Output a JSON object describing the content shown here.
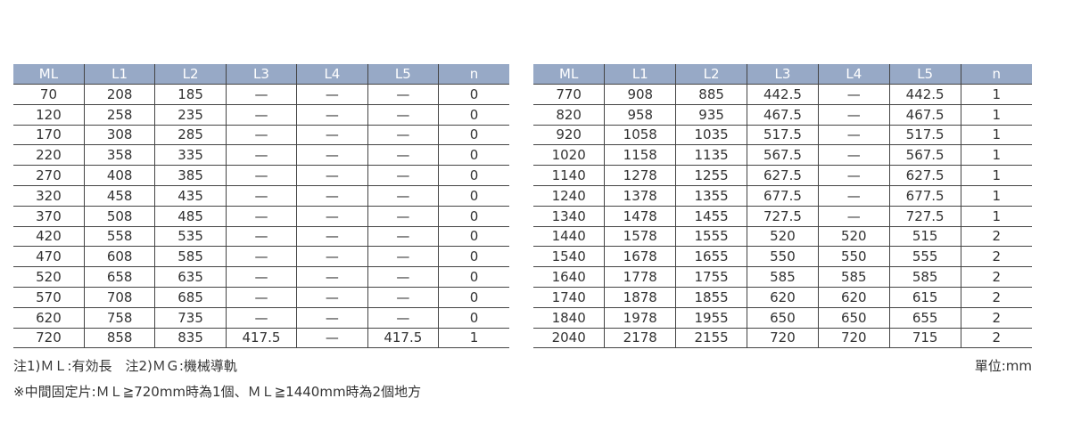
{
  "headers": [
    "ML",
    "L1",
    "L2",
    "L3",
    "L4",
    "L5",
    "n"
  ],
  "left_rows": [
    [
      "70",
      "208",
      "185",
      "—",
      "—",
      "—",
      "0"
    ],
    [
      "120",
      "258",
      "235",
      "—",
      "—",
      "—",
      "0"
    ],
    [
      "170",
      "308",
      "285",
      "—",
      "—",
      "—",
      "0"
    ],
    [
      "220",
      "358",
      "335",
      "—",
      "—",
      "—",
      "0"
    ],
    [
      "270",
      "408",
      "385",
      "—",
      "—",
      "—",
      "0"
    ],
    [
      "320",
      "458",
      "435",
      "—",
      "—",
      "—",
      "0"
    ],
    [
      "370",
      "508",
      "485",
      "—",
      "—",
      "—",
      "0"
    ],
    [
      "420",
      "558",
      "535",
      "—",
      "—",
      "—",
      "0"
    ],
    [
      "470",
      "608",
      "585",
      "—",
      "—",
      "—",
      "0"
    ],
    [
      "520",
      "658",
      "635",
      "—",
      "—",
      "—",
      "0"
    ],
    [
      "570",
      "708",
      "685",
      "—",
      "—",
      "—",
      "0"
    ],
    [
      "620",
      "758",
      "735",
      "—",
      "—",
      "—",
      "0"
    ],
    [
      "720",
      "858",
      "835",
      "417.5",
      "—",
      "417.5",
      "1"
    ]
  ],
  "right_rows": [
    [
      "770",
      "908",
      "885",
      "442.5",
      "—",
      "442.5",
      "1"
    ],
    [
      "820",
      "958",
      "935",
      "467.5",
      "—",
      "467.5",
      "1"
    ],
    [
      "920",
      "1058",
      "1035",
      "517.5",
      "—",
      "517.5",
      "1"
    ],
    [
      "1020",
      "1158",
      "1135",
      "567.5",
      "—",
      "567.5",
      "1"
    ],
    [
      "1140",
      "1278",
      "1255",
      "627.5",
      "—",
      "627.5",
      "1"
    ],
    [
      "1240",
      "1378",
      "1355",
      "677.5",
      "—",
      "677.5",
      "1"
    ],
    [
      "1340",
      "1478",
      "1455",
      "727.5",
      "—",
      "727.5",
      "1"
    ],
    [
      "1440",
      "1578",
      "1555",
      "520",
      "520",
      "515",
      "2"
    ],
    [
      "1540",
      "1678",
      "1655",
      "550",
      "550",
      "555",
      "2"
    ],
    [
      "1640",
      "1778",
      "1755",
      "585",
      "585",
      "585",
      "2"
    ],
    [
      "1740",
      "1878",
      "1855",
      "620",
      "620",
      "615",
      "2"
    ],
    [
      "1840",
      "1978",
      "1955",
      "650",
      "650",
      "655",
      "2"
    ],
    [
      "2040",
      "2178",
      "2155",
      "720",
      "720",
      "715",
      "2"
    ]
  ],
  "notes": {
    "note1": "注1)ＭＬ:有効長　注2)ＭＧ:機械導軌",
    "note2": "※中間固定片:ＭＬ≧720mm時為1個、ＭＬ≧1440mm時為2個地方",
    "unit": "單位:mm"
  },
  "colors": {
    "header_bg": "#97a9c6"
  }
}
